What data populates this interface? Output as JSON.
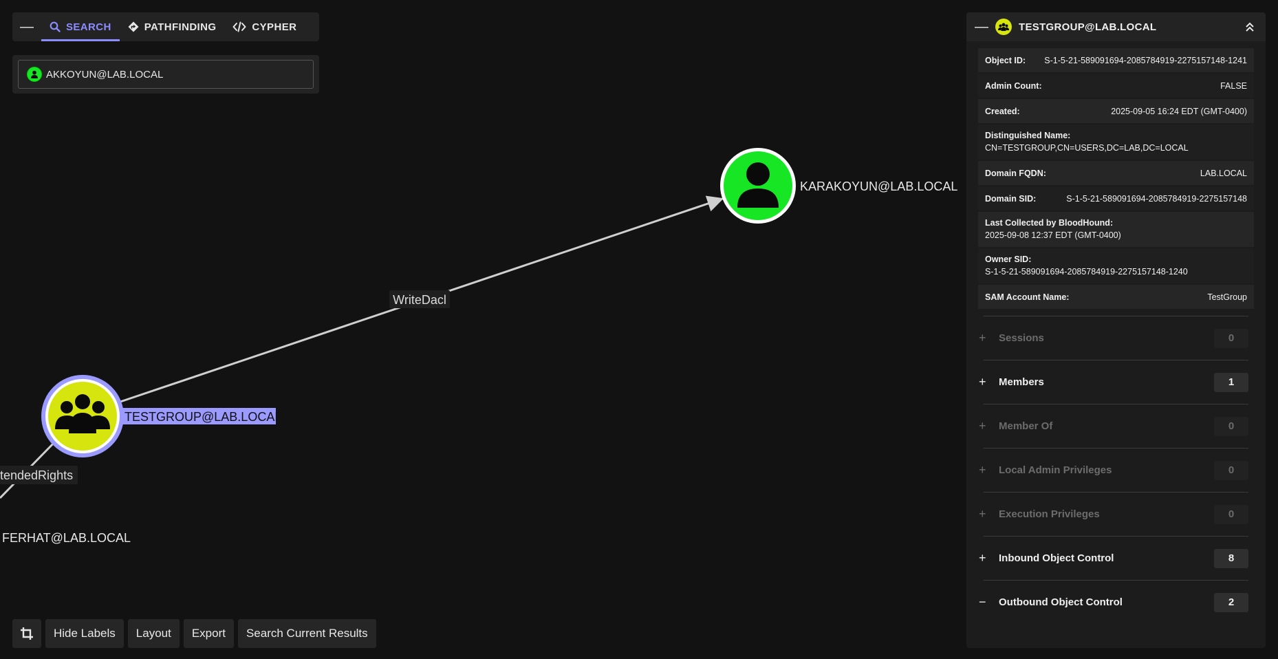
{
  "graph": {
    "nodes": {
      "karakoyun": {
        "label": "KARAKOYUN@LAB.LOCAL",
        "type": "user",
        "color": "#17e625"
      },
      "testgroup": {
        "label": "TESTGROUP@LAB.LOCAL",
        "type": "group",
        "color": "#d6e50e",
        "selected": true
      },
      "ferhat": {
        "label": "FERHAT@LAB.LOCAL",
        "type": "user"
      }
    },
    "edges": {
      "writedacl": "WriteDacl",
      "extended_rights_partial": "tendedRights"
    },
    "selection_color": "#9a9aff"
  },
  "tabs": {
    "collapse_icon": "minus-icon",
    "search": "SEARCH",
    "pathfinding": "PATHFINDING",
    "cypher": "CYPHER",
    "active": "search",
    "accent": "#8c8cff"
  },
  "search": {
    "value": "AKKOYUN@LAB.LOCAL",
    "node_type": "user"
  },
  "toolbar": {
    "crop_icon": "crop-icon",
    "hide_labels": "Hide Labels",
    "layout": "Layout",
    "export": "Export",
    "search_current": "Search Current Results"
  },
  "panel": {
    "title": "TESTGROUP@LAB.LOCAL",
    "properties": {
      "object_id": {
        "key": "Object ID:",
        "value": "S-1-5-21-589091694-2085784919-2275157148-1241"
      },
      "admin_count": {
        "key": "Admin Count:",
        "value": "FALSE"
      },
      "created": {
        "key": "Created:",
        "value": "2025-09-05 16:24 EDT (GMT-0400)"
      },
      "distinguished_name": {
        "key": "Distinguished Name:",
        "value": "CN=TESTGROUP,CN=USERS,DC=LAB,DC=LOCAL"
      },
      "domain_fqdn": {
        "key": "Domain FQDN:",
        "value": "LAB.LOCAL"
      },
      "domain_sid": {
        "key": "Domain SID:",
        "value": "S-1-5-21-589091694-2085784919-2275157148"
      },
      "last_collected": {
        "key": "Last Collected by BloodHound:",
        "value": "2025-09-08 12:37 EDT (GMT-0400)"
      },
      "owner_sid": {
        "key": "Owner SID:",
        "value": "S-1-5-21-589091694-2085784919-2275157148-1240"
      },
      "sam_account_name": {
        "key": "SAM Account Name:",
        "value": "TestGroup"
      }
    },
    "sections": [
      {
        "name": "Sessions",
        "count": "0",
        "sign": "+",
        "enabled": false
      },
      {
        "name": "Members",
        "count": "1",
        "sign": "+",
        "enabled": true
      },
      {
        "name": "Member Of",
        "count": "0",
        "sign": "+",
        "enabled": false
      },
      {
        "name": "Local Admin Privileges",
        "count": "0",
        "sign": "+",
        "enabled": false
      },
      {
        "name": "Execution Privileges",
        "count": "0",
        "sign": "+",
        "enabled": false
      },
      {
        "name": "Inbound Object Control",
        "count": "8",
        "sign": "+",
        "enabled": true
      },
      {
        "name": "Outbound Object Control",
        "count": "2",
        "sign": "−",
        "enabled": true
      }
    ]
  }
}
